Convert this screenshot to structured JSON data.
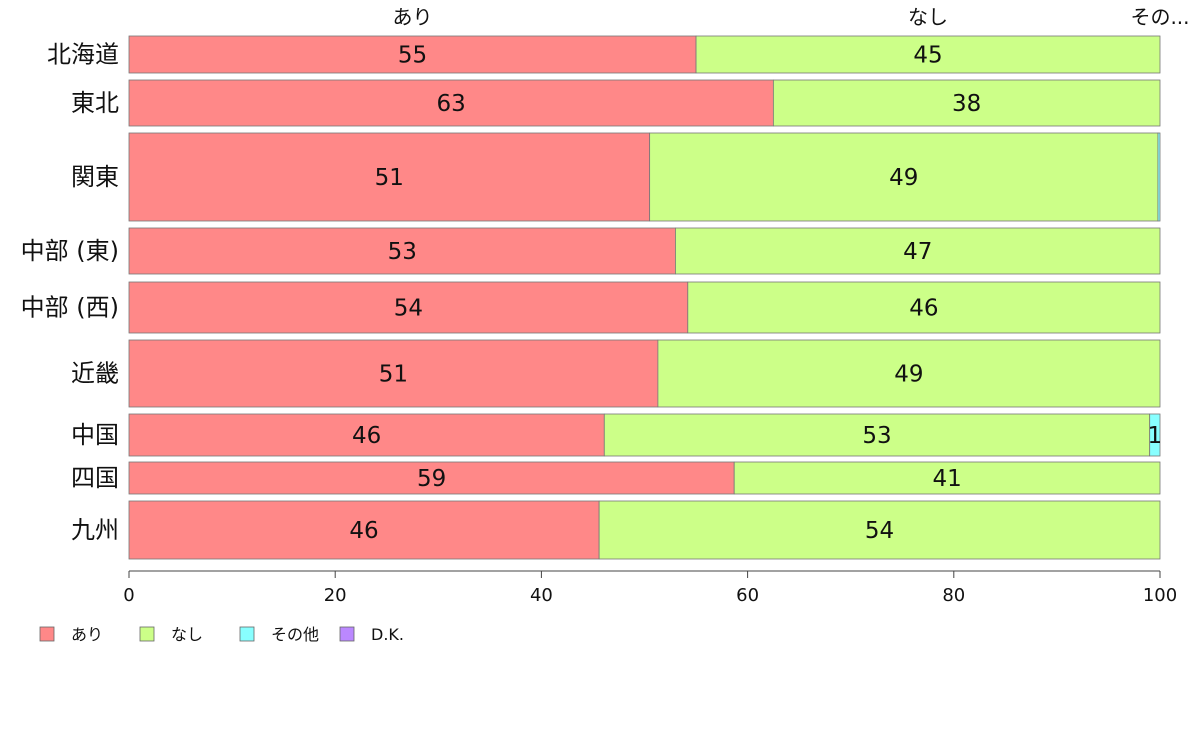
{
  "chart_data": {
    "type": "bar",
    "orientation": "horizontal",
    "stacked": true,
    "categories": [
      "北海道",
      "東北",
      "関東",
      "中部 (東)",
      "中部 (西)",
      "近畿",
      "中国",
      "四国",
      "九州"
    ],
    "series": [
      {
        "name": "あり",
        "color": "#ff8888",
        "values": [
          55,
          62.5,
          50.5,
          53,
          54.2,
          51.3,
          46.1,
          58.7,
          45.6
        ]
      },
      {
        "name": "なし",
        "color": "#ccff88",
        "values": [
          45,
          37.5,
          49.3,
          47,
          45.8,
          48.7,
          52.9,
          41.3,
          54.4
        ]
      },
      {
        "name": "その他",
        "color": "#88ffff",
        "values": [
          0,
          0,
          0.2,
          0,
          0,
          0,
          1,
          0,
          0
        ]
      },
      {
        "name": "D.K.",
        "color": "#bb88ff",
        "values": [
          0,
          0,
          0,
          0,
          0,
          0,
          0,
          0,
          0
        ]
      }
    ],
    "segment_labels": [
      [
        "55",
        "45",
        "",
        ""
      ],
      [
        "63",
        "38",
        "",
        ""
      ],
      [
        "51",
        "49",
        "",
        ""
      ],
      [
        "53",
        "47",
        "",
        ""
      ],
      [
        "54",
        "46",
        "",
        ""
      ],
      [
        "51",
        "49",
        "",
        ""
      ],
      [
        "46",
        "53",
        "1",
        ""
      ],
      [
        "59",
        "41",
        "",
        ""
      ],
      [
        "46",
        "54",
        "",
        ""
      ]
    ],
    "top_labels": [
      "あり",
      "なし",
      "その..."
    ],
    "xlim": [
      0,
      100
    ],
    "xticks": [
      0,
      20,
      40,
      60,
      80,
      100
    ],
    "legend_position": "bottom-left",
    "grid": false
  }
}
